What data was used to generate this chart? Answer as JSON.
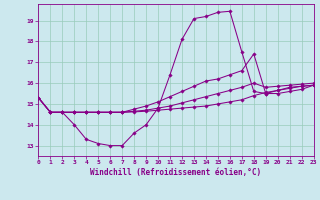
{
  "title": "",
  "xlabel": "Windchill (Refroidissement éolien,°C)",
  "ylabel": "",
  "bg_color": "#cce8ee",
  "line_color": "#880088",
  "grid_color": "#99ccbb",
  "xlim": [
    0,
    23
  ],
  "ylim": [
    12.5,
    19.8
  ],
  "xticks": [
    0,
    1,
    2,
    3,
    4,
    5,
    6,
    7,
    8,
    9,
    10,
    11,
    12,
    13,
    14,
    15,
    16,
    17,
    18,
    19,
    20,
    21,
    22,
    23
  ],
  "yticks": [
    13,
    14,
    15,
    16,
    17,
    18,
    19
  ],
  "lines": [
    {
      "x": [
        0,
        1,
        2,
        3,
        4,
        5,
        6,
        7,
        8,
        9,
        10,
        11,
        12,
        13,
        14,
        15,
        16,
        17,
        18,
        19,
        20,
        21,
        22,
        23
      ],
      "y": [
        15.3,
        14.6,
        14.6,
        14.0,
        13.3,
        13.1,
        13.0,
        13.0,
        13.6,
        14.0,
        14.8,
        16.4,
        18.1,
        19.1,
        19.2,
        19.4,
        19.45,
        17.5,
        15.6,
        15.5,
        15.5,
        15.6,
        15.7,
        15.9
      ]
    },
    {
      "x": [
        0,
        1,
        2,
        3,
        4,
        5,
        6,
        7,
        8,
        9,
        10,
        11,
        12,
        13,
        14,
        15,
        16,
        17,
        18,
        19,
        20,
        21,
        22,
        23
      ],
      "y": [
        15.3,
        14.6,
        14.6,
        14.6,
        14.6,
        14.6,
        14.6,
        14.6,
        14.75,
        14.9,
        15.1,
        15.35,
        15.6,
        15.85,
        16.1,
        16.2,
        16.4,
        16.6,
        17.4,
        15.5,
        15.65,
        15.8,
        15.85,
        15.9
      ]
    },
    {
      "x": [
        0,
        1,
        2,
        3,
        4,
        5,
        6,
        7,
        8,
        9,
        10,
        11,
        12,
        13,
        14,
        15,
        16,
        17,
        18,
        19,
        20,
        21,
        22,
        23
      ],
      "y": [
        15.3,
        14.6,
        14.6,
        14.6,
        14.6,
        14.6,
        14.6,
        14.6,
        14.65,
        14.7,
        14.8,
        14.9,
        15.05,
        15.2,
        15.35,
        15.5,
        15.65,
        15.8,
        16.0,
        15.8,
        15.85,
        15.9,
        15.95,
        16.0
      ]
    },
    {
      "x": [
        0,
        1,
        2,
        3,
        4,
        5,
        6,
        7,
        8,
        9,
        10,
        11,
        12,
        13,
        14,
        15,
        16,
        17,
        18,
        19,
        20,
        21,
        22,
        23
      ],
      "y": [
        15.3,
        14.6,
        14.6,
        14.6,
        14.6,
        14.6,
        14.6,
        14.6,
        14.62,
        14.65,
        14.7,
        14.75,
        14.8,
        14.85,
        14.9,
        15.0,
        15.1,
        15.2,
        15.4,
        15.55,
        15.65,
        15.75,
        15.85,
        15.9
      ]
    }
  ]
}
